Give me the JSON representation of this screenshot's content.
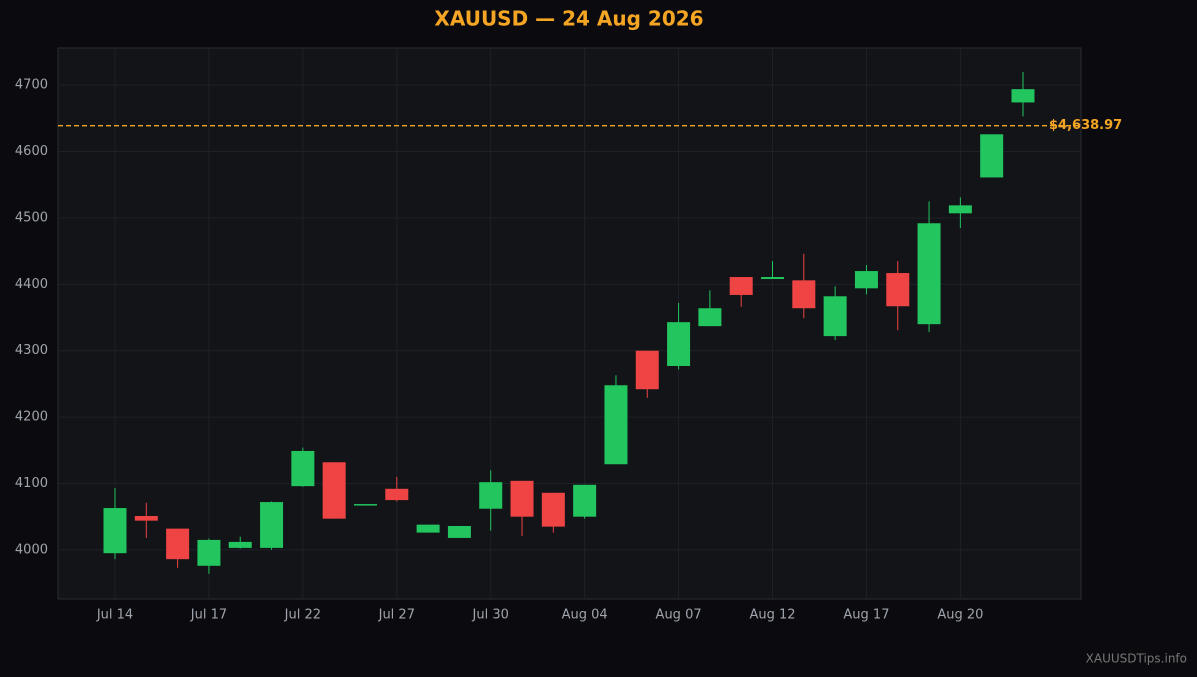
{
  "chart_data": {
    "type": "candlestick",
    "title": "XAUUSD — 24 Aug 2026",
    "categories": [
      "Jul 14",
      null,
      null,
      "Jul 17",
      null,
      null,
      "Jul 22",
      null,
      null,
      "Jul 27",
      null,
      null,
      "Jul 30",
      null,
      null,
      "Aug 04",
      null,
      null,
      "Aug 07",
      null,
      null,
      "Aug 12",
      null,
      null,
      "Aug 17",
      null,
      null,
      "Aug 20",
      null,
      null
    ],
    "open": [
      3995,
      4051,
      4032,
      3976,
      4003,
      4003,
      4096,
      4132,
      4067,
      4092,
      4026,
      4018,
      4062,
      4104,
      4086,
      4050,
      4129,
      4300,
      4277,
      4337,
      4411,
      4408,
      4406,
      4322,
      4394,
      4417,
      4340,
      4507,
      4561,
      4674
    ],
    "high": [
      4093,
      4071,
      4032,
      4017,
      4020,
      4073,
      4154,
      4132,
      4069,
      4110,
      4038,
      4036,
      4120,
      4104,
      4086,
      4098,
      4263,
      4300,
      4372,
      4391,
      4411,
      4435,
      4446,
      4397,
      4429,
      4435,
      4525,
      4531,
      4626,
      4720
    ],
    "low": [
      3986,
      4018,
      3973,
      3964,
      4002,
      4000,
      4095,
      4047,
      4067,
      4073,
      4026,
      4018,
      4029,
      4021,
      4026,
      4047,
      4129,
      4229,
      4272,
      4337,
      4366,
      4408,
      4349,
      4316,
      4385,
      4331,
      4328,
      4485,
      4561,
      4653
    ],
    "close": [
      4063,
      4044,
      3986,
      4015,
      4012,
      4072,
      4149,
      4047,
      4069,
      4075,
      4038,
      4036,
      4102,
      4050,
      4035,
      4098,
      4248,
      4242,
      4343,
      4364,
      4384,
      4411,
      4364,
      4382,
      4420,
      4367,
      4492,
      4519,
      4626,
      4694
    ],
    "up_color": "#22c55e",
    "down_color": "#ef4444",
    "price_line": {
      "value": 4638.97,
      "label": "$4,638.97",
      "color": "#f5a524"
    },
    "ylim": [
      3926,
      4756
    ],
    "yticks": [
      4000,
      4100,
      4200,
      4300,
      4400,
      4500,
      4600,
      4700
    ],
    "grid": true
  },
  "watermark": "XAUUSDTips.info"
}
